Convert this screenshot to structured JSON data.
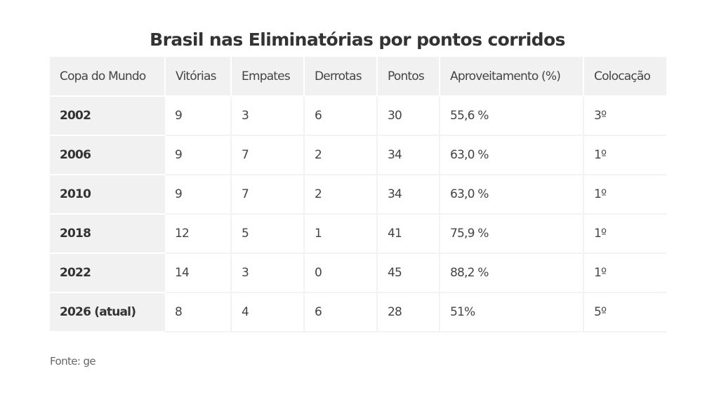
{
  "title": "Brasil nas Eliminatórias por pontos corridos",
  "table": {
    "headers": [
      "Copa do Mundo",
      "Vitórias",
      "Empates",
      "Derrotas",
      "Pontos",
      "Aproveitamento (%)",
      "Colocação"
    ],
    "rows": [
      [
        "2002",
        "9",
        "3",
        "6",
        "30",
        "55,6 %",
        "3º"
      ],
      [
        "2006",
        "9",
        "7",
        "2",
        "34",
        "63,0 %",
        "1º"
      ],
      [
        "2010",
        "9",
        "7",
        "2",
        "34",
        "63,0 %",
        "1º"
      ],
      [
        "2018",
        "12",
        "5",
        "1",
        "41",
        "75,9 %",
        "1º"
      ],
      [
        "2022",
        "14",
        "3",
        "0",
        "45",
        "88,2 %",
        "1º"
      ],
      [
        "2026 (atual)",
        "8",
        "4",
        "6",
        "28",
        "51%",
        "5º"
      ]
    ]
  },
  "source": "Fonte: ge",
  "colors": {
    "header_bg": "#f1f1f1",
    "text": "#333333",
    "source_text": "#666666"
  }
}
